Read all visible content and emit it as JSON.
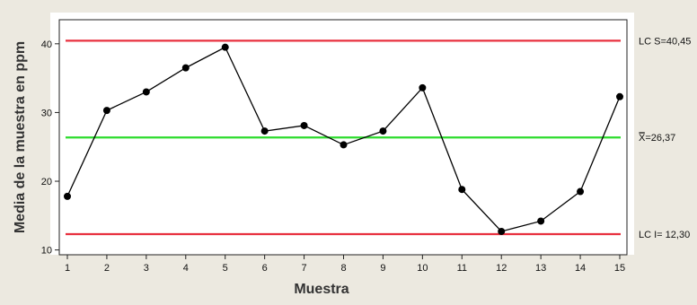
{
  "chart_data": {
    "type": "line",
    "xlabel": "Muestra",
    "ylabel": "Media de la muestra en ppm",
    "x": [
      1,
      2,
      3,
      4,
      5,
      6,
      7,
      8,
      9,
      10,
      11,
      12,
      13,
      14,
      15
    ],
    "y": [
      17.8,
      30.3,
      33.0,
      36.5,
      39.5,
      27.3,
      28.1,
      25.3,
      27.3,
      33.6,
      18.8,
      12.7,
      14.2,
      18.5,
      32.3
    ],
    "xlim": [
      0.5,
      15.5
    ],
    "ylim": [
      9.3,
      43.5
    ],
    "y_ticks": [
      10,
      20,
      30,
      40
    ],
    "x_ticks": [
      1,
      2,
      3,
      4,
      5,
      6,
      7,
      8,
      9,
      10,
      11,
      12,
      13,
      14,
      15
    ],
    "control_limits": {
      "ucl": {
        "value": 40.45,
        "label": "LC S=40,45",
        "color": "#e8303f"
      },
      "center": {
        "value": 26.37,
        "label_symbol": "X̿",
        "label_text": "=26,37",
        "color": "#2ddc2d"
      },
      "lcl": {
        "value": 12.3,
        "label": "LC I= 12,30",
        "color": "#e8303f"
      }
    },
    "series_color": "#000000",
    "grid": false
  }
}
